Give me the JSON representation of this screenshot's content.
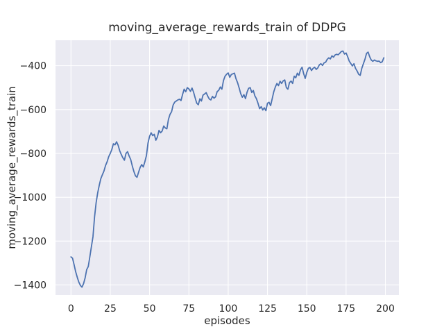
{
  "figure": {
    "background": "#ffffff"
  },
  "chart_data": {
    "type": "line",
    "title": "moving_average_rewards_train of DDPG",
    "xlabel": "episodes",
    "ylabel": "moving_average_rewards_train",
    "grid": true,
    "legend": null,
    "plot_bg": "#eaeaf2",
    "grid_color": "#ffffff",
    "text_color": "#262626",
    "line_color": "#4c72b0",
    "xlim": [
      -9.84,
      208.6
    ],
    "ylim": [
      -1446,
      -284
    ],
    "xticks": [
      0,
      25,
      50,
      75,
      100,
      125,
      150,
      175,
      200
    ],
    "yticks": [
      -400,
      -600,
      -800,
      -1000,
      -1200,
      -1400
    ],
    "xtick_labels": [
      "0",
      "25",
      "50",
      "75",
      "100",
      "125",
      "150",
      "175",
      "200"
    ],
    "ytick_labels": [
      "−400",
      "−600",
      "−800",
      "−1000",
      "−1200",
      "−1400"
    ],
    "series": [
      {
        "name": "moving_average_rewards_train",
        "x_start": 0,
        "x_step": 1,
        "y": [
          -1272,
          -1278,
          -1308,
          -1340,
          -1365,
          -1387,
          -1402,
          -1410,
          -1394,
          -1368,
          -1330,
          -1316,
          -1272,
          -1225,
          -1180,
          -1090,
          -1025,
          -980,
          -945,
          -915,
          -897,
          -880,
          -855,
          -838,
          -815,
          -800,
          -782,
          -756,
          -761,
          -747,
          -763,
          -788,
          -805,
          -820,
          -831,
          -800,
          -792,
          -812,
          -828,
          -857,
          -882,
          -902,
          -909,
          -886,
          -864,
          -851,
          -862,
          -838,
          -810,
          -753,
          -722,
          -706,
          -719,
          -713,
          -740,
          -725,
          -695,
          -706,
          -698,
          -675,
          -684,
          -688,
          -645,
          -622,
          -610,
          -579,
          -566,
          -561,
          -556,
          -553,
          -559,
          -531,
          -507,
          -519,
          -500,
          -506,
          -517,
          -502,
          -521,
          -547,
          -571,
          -578,
          -551,
          -561,
          -534,
          -529,
          -523,
          -539,
          -552,
          -556,
          -540,
          -548,
          -542,
          -518,
          -512,
          -497,
          -507,
          -468,
          -448,
          -439,
          -433,
          -453,
          -440,
          -437,
          -434,
          -460,
          -478,
          -502,
          -528,
          -544,
          -532,
          -550,
          -521,
          -503,
          -500,
          -522,
          -513,
          -538,
          -551,
          -572,
          -596,
          -587,
          -602,
          -592,
          -605,
          -571,
          -567,
          -582,
          -551,
          -519,
          -497,
          -481,
          -491,
          -471,
          -481,
          -469,
          -465,
          -500,
          -507,
          -477,
          -470,
          -481,
          -448,
          -455,
          -434,
          -444,
          -419,
          -407,
          -436,
          -458,
          -431,
          -412,
          -408,
          -422,
          -412,
          -407,
          -417,
          -410,
          -396,
          -391,
          -399,
          -387,
          -384,
          -371,
          -364,
          -369,
          -355,
          -361,
          -351,
          -348,
          -350,
          -343,
          -335,
          -333,
          -347,
          -342,
          -359,
          -379,
          -390,
          -401,
          -391,
          -412,
          -424,
          -439,
          -444,
          -412,
          -391,
          -371,
          -344,
          -338,
          -359,
          -374,
          -380,
          -374,
          -378,
          -380,
          -379,
          -386,
          -382,
          -364
        ]
      }
    ]
  }
}
